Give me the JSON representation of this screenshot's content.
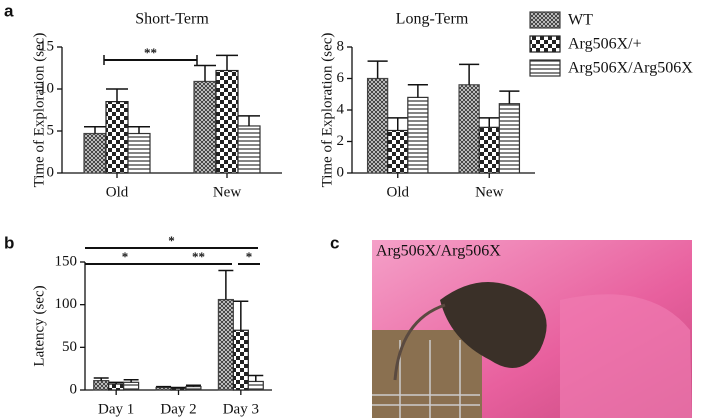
{
  "panel_labels": [
    "a",
    "b",
    "c"
  ],
  "photo": {
    "label": "Arg506X/Arg506X"
  },
  "chart_data": [
    {
      "type": "bar",
      "title": "Short-Term",
      "y_label": "Time of Exploration (sec)",
      "categories": [
        "Old",
        "New"
      ],
      "series": [
        {
          "name": "WT",
          "color": "#444444",
          "values": [
            4.7,
            10.9
          ],
          "errors": [
            0.8,
            1.9
          ]
        },
        {
          "name": "Arg506X/+",
          "color": "#222222",
          "values": [
            8.5,
            12.2
          ],
          "errors": [
            1.5,
            1.8
          ]
        },
        {
          "name": "Arg506X/Arg506X",
          "color": "#333333",
          "values": [
            4.7,
            5.6
          ],
          "errors": [
            0.8,
            1.2
          ]
        }
      ],
      "ylim": [
        0,
        15
      ],
      "yticks": [
        0,
        5,
        10,
        15
      ],
      "annotations": [
        "**"
      ],
      "legend": "right"
    },
    {
      "type": "bar",
      "title": "Long-Term",
      "y_label": "Time of Exploration (sec)",
      "categories": [
        "Old",
        "New"
      ],
      "series": [
        {
          "name": "WT",
          "color": "#444444",
          "values": [
            6.0,
            5.6
          ],
          "errors": [
            1.1,
            1.3
          ]
        },
        {
          "name": "Arg506X/+",
          "color": "#222222",
          "values": [
            2.7,
            2.9
          ],
          "errors": [
            0.8,
            0.6
          ]
        },
        {
          "name": "Arg506X/Arg506X",
          "color": "#333333",
          "values": [
            4.8,
            4.4
          ],
          "errors": [
            0.8,
            0.8
          ]
        }
      ],
      "ylim": [
        0,
        8
      ],
      "yticks": [
        0,
        2,
        4,
        6,
        8
      ]
    },
    {
      "type": "bar",
      "y_label": "Latency (sec)",
      "categories": [
        "Day 1",
        "Day 2",
        "Day 3"
      ],
      "series": [
        {
          "name": "WT",
          "color": "#444444",
          "values": [
            11,
            3,
            106
          ],
          "errors": [
            3,
            1,
            34
          ]
        },
        {
          "name": "Arg506X/+",
          "color": "#222222",
          "values": [
            7,
            2,
            70
          ],
          "errors": [
            2,
            1,
            34
          ]
        },
        {
          "name": "Arg506X/Arg506X",
          "color": "#333333",
          "values": [
            9,
            4,
            10
          ],
          "errors": [
            3,
            1.5,
            7
          ]
        }
      ],
      "ylim": [
        0,
        150
      ],
      "yticks": [
        0,
        50,
        100,
        150
      ],
      "annotations": [
        "*",
        "*",
        "**",
        "*"
      ]
    }
  ]
}
